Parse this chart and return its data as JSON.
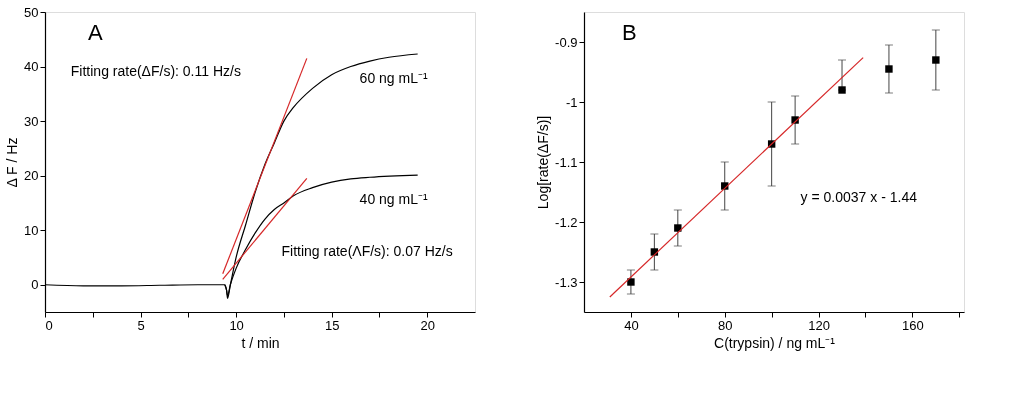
{
  "chart_data": [
    {
      "type": "line",
      "xlabel": "t / min",
      "ylabel": "Δ F / Hz",
      "xlim": [
        0,
        22.5
      ],
      "ylim": [
        -5,
        50
      ],
      "xticks": [
        0,
        {
          "value": 2.5,
          "label": null
        },
        5,
        {
          "value": 7.5,
          "label": null
        },
        10,
        {
          "value": 12.5,
          "label": null
        },
        15,
        {
          "value": 17.5,
          "label": null
        },
        20
      ],
      "yticks": [
        0,
        10,
        20,
        30,
        40,
        50
      ],
      "grid": false,
      "line_style": "solid",
      "series": [
        {
          "name": "60 ng mL⁻¹",
          "color": "#000000",
          "x": [
            0,
            2,
            4,
            6,
            8,
            9.4,
            9.5,
            9.55,
            9.7,
            10,
            10.5,
            11,
            11.5,
            12,
            12.5,
            13,
            14,
            15,
            16,
            17,
            18,
            19.5
          ],
          "values": [
            0,
            -0.2,
            -0.2,
            -0.1,
            0,
            0,
            -1,
            -2.5,
            0,
            5,
            11,
            17,
            22,
            26,
            30,
            32.5,
            36,
            38.5,
            40,
            41,
            41.7,
            42.3
          ]
        },
        {
          "name": "40 ng mL⁻¹",
          "color": "#000000",
          "x": [
            9.4,
            9.5,
            9.55,
            9.7,
            10,
            10.5,
            11,
            11.5,
            12,
            12.5,
            13,
            14,
            15,
            16,
            17,
            19.5
          ],
          "values": [
            0,
            -1,
            -2,
            0,
            3,
            6.5,
            9.5,
            12,
            13.8,
            15,
            16.3,
            17.8,
            18.8,
            19.4,
            19.7,
            20.1
          ]
        },
        {
          "type": "line",
          "color": "#d62728",
          "x": [
            9.3,
            13.7
          ],
          "values": [
            2,
            41.5
          ]
        },
        {
          "type": "line",
          "color": "#d62728",
          "x": [
            9.3,
            13.7
          ],
          "values": [
            1,
            19.5
          ]
        }
      ],
      "annotations": [
        "A",
        "Fitting rate(ΔF/s): 0.11 Hz/s",
        "Fitting rate(ΛF/s): 0.07 Hz/s"
      ]
    },
    {
      "type": "scatter",
      "xlabel": "C(trypsin) / ng mL⁻¹",
      "ylabel": "Log[rate(ΔF/s)]",
      "xlim": [
        20,
        182
      ],
      "ylim": [
        -1.35,
        -0.85
      ],
      "xticks": [
        40,
        {
          "value": 60,
          "label": null
        },
        80,
        {
          "value": 100,
          "label": null
        },
        120,
        {
          "value": 140,
          "label": null
        },
        160,
        {
          "value": 180,
          "label": null
        }
      ],
      "yticks": [
        -1.3,
        -1.2,
        -1.1,
        -1.0,
        -0.9
      ],
      "grid": false,
      "marker": "square",
      "line_style": "solid",
      "series": [
        {
          "color": "#000000",
          "x": [
            40,
            50,
            60,
            80,
            100,
            110,
            130,
            150,
            170
          ],
          "values": [
            -1.3,
            -1.25,
            -1.21,
            -1.14,
            -1.07,
            -1.03,
            -0.98,
            -0.945,
            -0.93
          ],
          "errors": [
            [
              -1.32,
              -1.28
            ],
            [
              -1.28,
              -1.22
            ],
            [
              -1.24,
              -1.18
            ],
            [
              -1.18,
              -1.1
            ],
            [
              -1.14,
              -1.0
            ],
            [
              -1.07,
              -0.99
            ],
            [
              -0.98,
              -0.93
            ],
            [
              -0.985,
              -0.905
            ],
            [
              -0.98,
              -0.88
            ]
          ]
        },
        {
          "type": "line",
          "marker": "none",
          "color": "#d62728",
          "x": [
            31,
            139
          ],
          "values": [
            -1.325,
            -0.926
          ]
        }
      ],
      "annotations": [
        "B",
        "y = 0.0037 x - 1.44"
      ]
    }
  ]
}
